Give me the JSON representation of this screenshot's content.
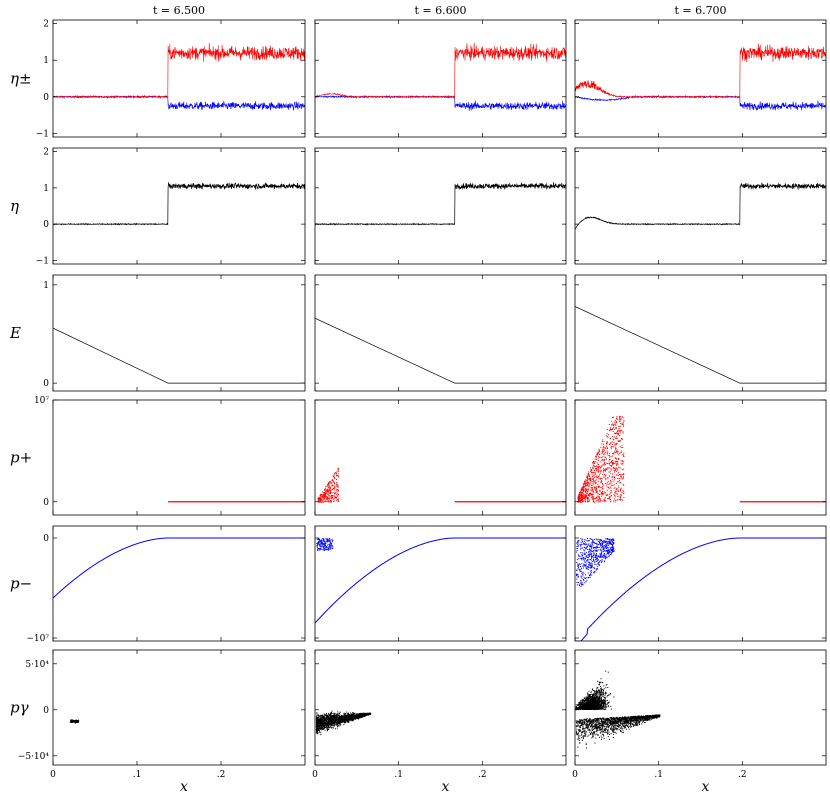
{
  "chart_data": {
    "type": "line",
    "layout": "grid",
    "rows": 6,
    "cols": 3,
    "columns": [
      {
        "title": "t = 6.500",
        "front_x": 0.137,
        "E0": 0.56,
        "p_minus_start": -6000000.0,
        "cloud_p": 0.0,
        "cloud_g": 0.05
      },
      {
        "title": "t = 6.600",
        "front_x": 0.167,
        "E0": 0.66,
        "p_minus_start": -8500000.0,
        "cloud_p": 0.3,
        "cloud_g": 0.6
      },
      {
        "title": "t = 6.700",
        "front_x": 0.197,
        "E0": 0.78,
        "p_minus_start": -10500000.0,
        "cloud_p": 1.0,
        "cloud_g": 1.0
      }
    ],
    "x": {
      "label": "x",
      "range": [
        0,
        0.3
      ],
      "ticks": [
        0,
        0.1,
        0.2
      ],
      "tick_labels": [
        "0",
        ".1",
        ".2"
      ]
    },
    "panels": [
      {
        "key": "eta_pm",
        "ylabel": "η±",
        "ylim": [
          -1.1,
          2.1
        ],
        "yticks": [
          -1,
          0,
          1,
          2
        ],
        "ytick_labels": [
          "−1",
          "0",
          "1",
          "2"
        ],
        "colors": [
          "#ff0000",
          "#0000ff"
        ],
        "plus_level": 1.2,
        "minus_level": -0.25
      },
      {
        "key": "eta",
        "ylabel": "η",
        "ylim": [
          -1.1,
          2.1
        ],
        "yticks": [
          -1,
          0,
          1,
          2
        ],
        "ytick_labels": [
          "−1",
          "0",
          "1",
          "2"
        ],
        "colors": [
          "#000000"
        ],
        "level": 1.05
      },
      {
        "key": "E",
        "ylabel": "E",
        "ylim": [
          -0.08,
          1.1
        ],
        "yticks": [
          0,
          1
        ],
        "ytick_labels": [
          "0",
          "1"
        ],
        "colors": [
          "#000000"
        ]
      },
      {
        "key": "p_plus",
        "ylabel": "p+",
        "ylim": [
          -1300000.0,
          10000000.0
        ],
        "yticks": [
          0,
          10000000.0
        ],
        "ytick_labels": [
          "0",
          "10⁷"
        ],
        "colors": [
          "#ff0000"
        ]
      },
      {
        "key": "p_minus",
        "ylabel": "p−",
        "ylim": [
          -10300000.0,
          1200000.0
        ],
        "yticks": [
          0,
          -10000000.0
        ],
        "ytick_labels": [
          "0",
          "−10⁷"
        ],
        "colors": [
          "#0000ff"
        ]
      },
      {
        "key": "p_gamma",
        "ylabel": "pγ",
        "ylim": [
          -60000.0,
          65000.0
        ],
        "yticks": [
          50000,
          0,
          -50000
        ],
        "ytick_labels": [
          "5·10⁴",
          "0",
          "−5·10⁴"
        ],
        "colors": [
          "#000000"
        ]
      }
    ]
  }
}
